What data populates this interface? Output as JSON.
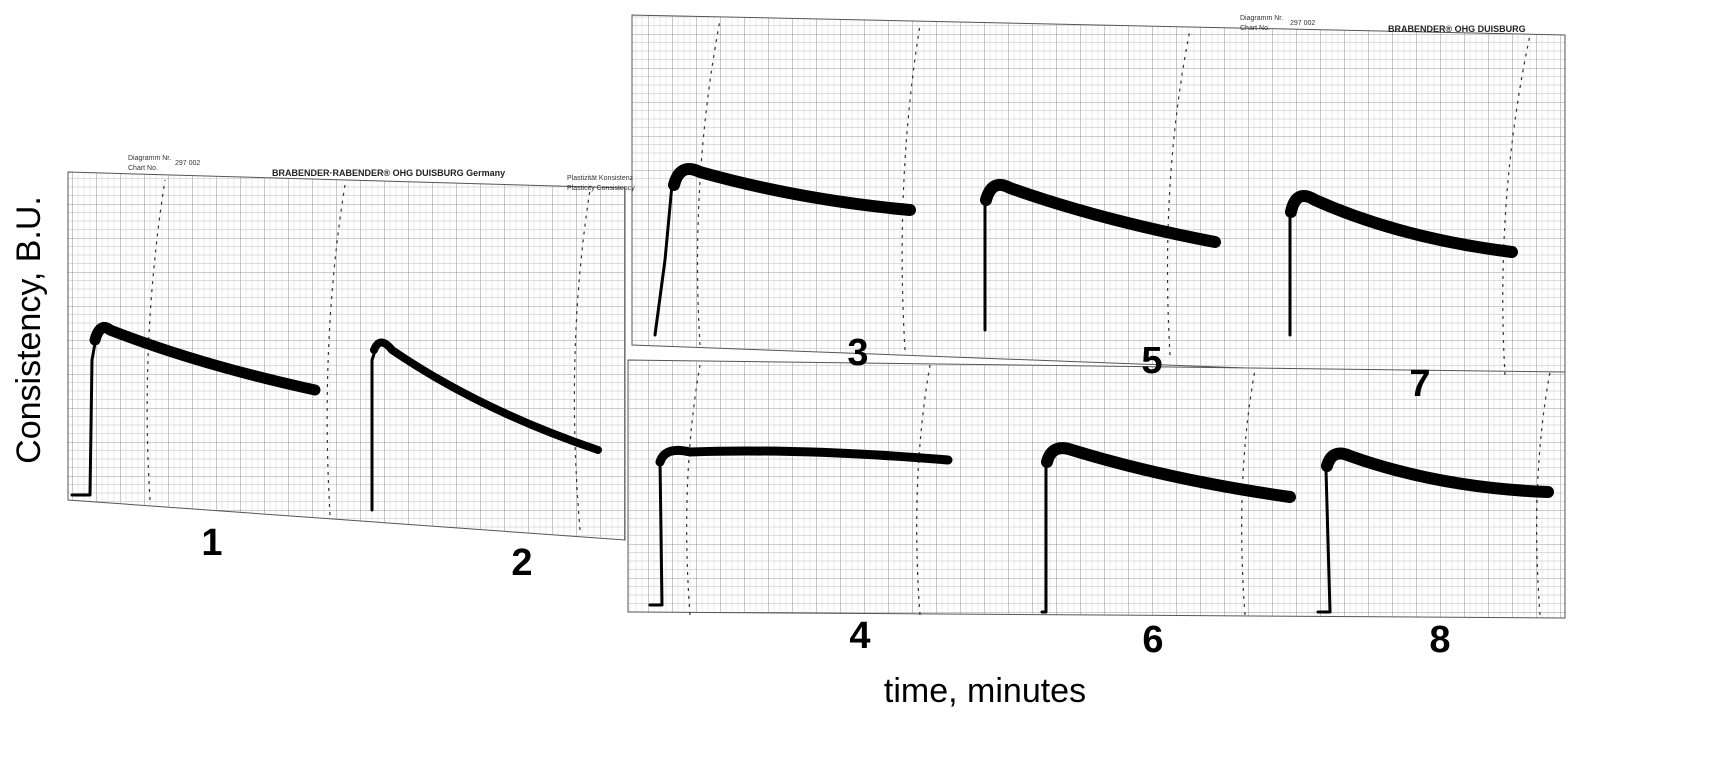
{
  "y_axis_label": "Consistency, B.U.",
  "x_axis_label": "time, minutes",
  "header": {
    "brand": "BRABENDER·RABENDER® OHG DUISBURG Germany",
    "brand_short": "BRABENDER® OHG DUISBURG",
    "diagram_label": "Diagramm Nr.",
    "chart_label": "Chart No.",
    "chart_number": "297 002",
    "plasticity_de": "Plastizität Konsistenz",
    "plasticity_en": "Plasticity Consistency"
  },
  "panels": [
    {
      "label": "1"
    },
    {
      "label": "2"
    },
    {
      "label": "3"
    },
    {
      "label": "4"
    },
    {
      "label": "5"
    },
    {
      "label": "6"
    },
    {
      "label": "7"
    },
    {
      "label": "8"
    }
  ]
}
